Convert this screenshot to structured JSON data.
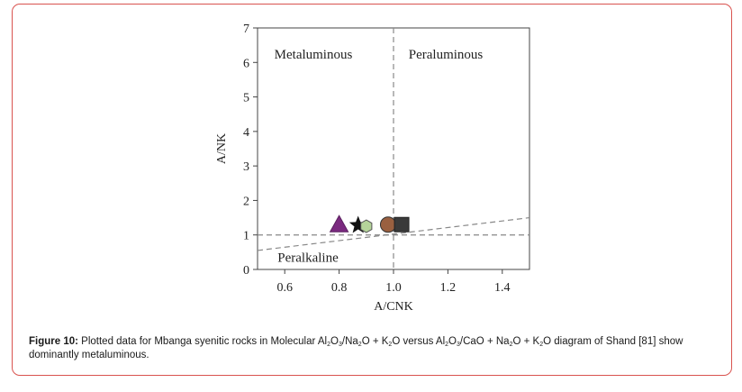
{
  "figure": {
    "caption_label": "Figure 10:",
    "caption_parts": [
      {
        "t": " Plotted data for Mbanga syenitic rocks in Molecular Al"
      },
      {
        "s": "2"
      },
      {
        "t": "O"
      },
      {
        "s": "3"
      },
      {
        "t": "/Na"
      },
      {
        "s": "2"
      },
      {
        "t": "O + K"
      },
      {
        "s": "2"
      },
      {
        "t": "O versus Al"
      },
      {
        "s": "2"
      },
      {
        "t": "O"
      },
      {
        "s": "3"
      },
      {
        "t": "/CaO + Na"
      },
      {
        "s": "2"
      },
      {
        "t": "O + K"
      },
      {
        "s": "2"
      },
      {
        "t": "O diagram of Shand [81] show dominantly metaluminous."
      }
    ]
  },
  "chart_data": {
    "type": "scatter",
    "xlabel": "A/CNK",
    "ylabel": "A/NK",
    "xlim": [
      0.5,
      1.5
    ],
    "ylim": [
      0,
      7
    ],
    "xticks": [
      0.6,
      0.8,
      1.0,
      1.2,
      1.4
    ],
    "xtick_labels": [
      "0.6",
      "0.8",
      "1.0",
      "1.2",
      "1.4"
    ],
    "yticks": [
      0,
      1,
      2,
      3,
      4,
      5,
      6,
      7
    ],
    "ytick_labels": [
      "0",
      "1",
      "2",
      "3",
      "4",
      "5",
      "6",
      "7"
    ],
    "grid": false,
    "field_labels": [
      "Metaluminous",
      "Peraluminous",
      "Peralkaline"
    ],
    "boundaries": [
      {
        "kind": "vertical",
        "x": 1.0,
        "style": "dashed"
      },
      {
        "kind": "horizontal",
        "y": 1.0,
        "style": "dashed"
      },
      {
        "kind": "line",
        "points": [
          [
            0.5,
            0.55
          ],
          [
            1.5,
            1.5
          ]
        ],
        "style": "dashed"
      }
    ],
    "points": [
      {
        "marker": "triangle",
        "color": "#7b2a80",
        "x": 0.8,
        "y": 1.3
      },
      {
        "marker": "star",
        "color": "#111111",
        "x": 0.87,
        "y": 1.28
      },
      {
        "marker": "hexagon",
        "color": "#b5d49a",
        "x": 0.9,
        "y": 1.25
      },
      {
        "marker": "circle",
        "color": "#9a6040",
        "x": 0.98,
        "y": 1.3
      },
      {
        "marker": "square",
        "color": "#3a3a3a",
        "x": 1.03,
        "y": 1.3
      }
    ]
  }
}
